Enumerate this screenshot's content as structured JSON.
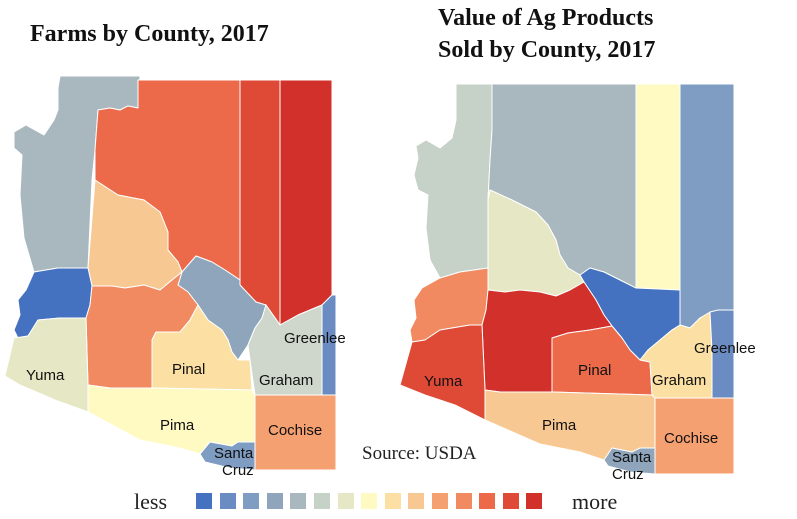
{
  "left_map": {
    "title": "Farms by County, 2017",
    "counties": [
      {
        "name": "Mohave",
        "label": "",
        "color": "#a9b7be"
      },
      {
        "name": "Coconino",
        "label": "",
        "color": "#ec6a4a"
      },
      {
        "name": "Navajo",
        "label": "",
        "color": "#de4a36"
      },
      {
        "name": "Apache",
        "label": "",
        "color": "#d2302a"
      },
      {
        "name": "Yavapai",
        "label": "",
        "color": "#f8c893"
      },
      {
        "name": "Gila",
        "label": "",
        "color": "#8ea5bc"
      },
      {
        "name": "La Paz",
        "label": "",
        "color": "#4472c0"
      },
      {
        "name": "Maricopa",
        "label": "",
        "color": "#f18a60"
      },
      {
        "name": "Yuma",
        "label": "Yuma",
        "color": "#e6e7c4"
      },
      {
        "name": "Pinal",
        "label": "Pinal",
        "color": "#fbdfa3"
      },
      {
        "name": "Graham",
        "label": "Graham",
        "color": "#cfd7cc"
      },
      {
        "name": "Greenlee",
        "label": "Greenlee",
        "color": "#6a8cc2"
      },
      {
        "name": "Pima",
        "label": "Pima",
        "color": "#fefac2"
      },
      {
        "name": "Cochise",
        "label": "Cochise",
        "color": "#f5a070"
      },
      {
        "name": "Santa Cruz",
        "label": "Santa Cruz",
        "color": "#7f9cc2"
      }
    ]
  },
  "right_map": {
    "title_line1": "Value of Ag Products",
    "title_line2": "Sold by County, 2017",
    "counties": [
      {
        "name": "Mohave",
        "label": "",
        "color": "#c6d1c8"
      },
      {
        "name": "Coconino",
        "label": "",
        "color": "#a9b7be"
      },
      {
        "name": "Navajo",
        "label": "",
        "color": "#fefac2"
      },
      {
        "name": "Apache",
        "label": "",
        "color": "#7f9cc2"
      },
      {
        "name": "Yavapai",
        "label": "",
        "color": "#e6e7c4"
      },
      {
        "name": "Gila",
        "label": "",
        "color": "#4472c0"
      },
      {
        "name": "La Paz",
        "label": "",
        "color": "#f18a60"
      },
      {
        "name": "Maricopa",
        "label": "",
        "color": "#d2302a"
      },
      {
        "name": "Yuma",
        "label": "Yuma",
        "color": "#de4a36"
      },
      {
        "name": "Pinal",
        "label": "Pinal",
        "color": "#ec6a4a"
      },
      {
        "name": "Graham",
        "label": "Graham",
        "color": "#fbdfa3"
      },
      {
        "name": "Greenlee",
        "label": "Greenlee",
        "color": "#6a8cc2"
      },
      {
        "name": "Pima",
        "label": "Pima",
        "color": "#f8c893"
      },
      {
        "name": "Cochise",
        "label": "Cochise",
        "color": "#f5a070"
      },
      {
        "name": "Santa Cruz",
        "label": "Santa Cruz",
        "color": "#8ea5bc"
      }
    ]
  },
  "source": "Source: USDA",
  "legend": {
    "low_label": "less",
    "high_label": "more",
    "colors": [
      "#4472c0",
      "#6a8cc2",
      "#7f9cc2",
      "#8ea5bc",
      "#a9b7be",
      "#c6d1c8",
      "#e6e7c4",
      "#fefac2",
      "#fbdfa3",
      "#f8c893",
      "#f5a070",
      "#f18a60",
      "#ec6a4a",
      "#de4a36",
      "#d2302a"
    ]
  }
}
